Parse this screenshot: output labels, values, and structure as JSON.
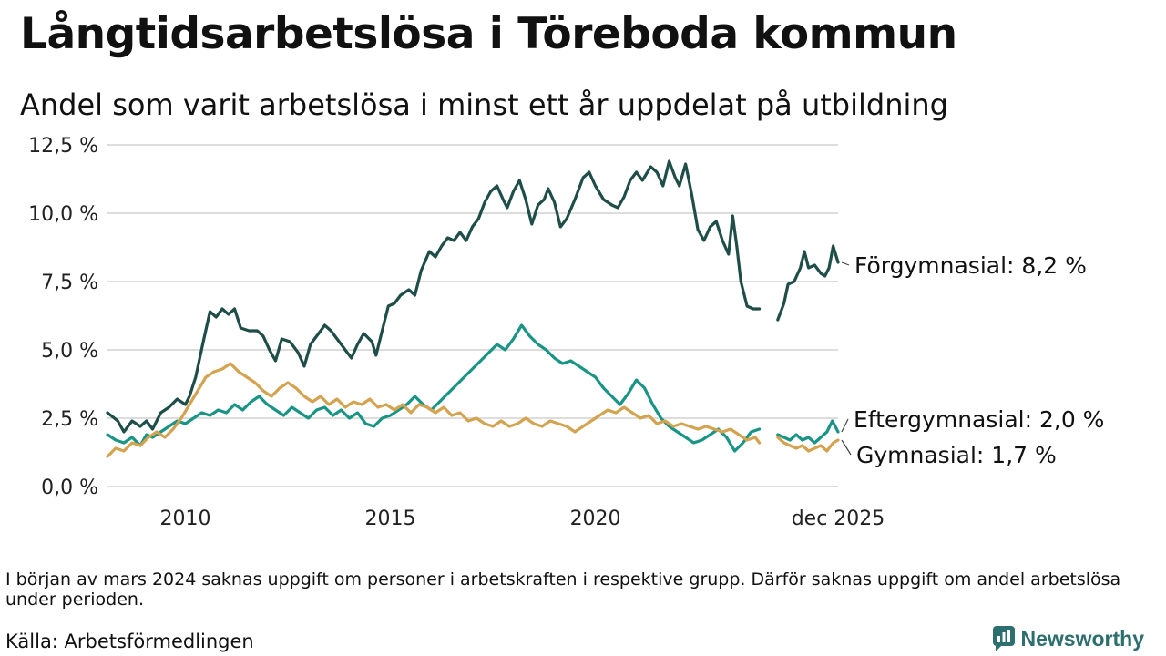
{
  "title": "Långtidsarbetslösa i Töreboda kommun",
  "subtitle": "Andel som varit arbetslösa i minst ett år uppdelat på utbildning",
  "note": "I början av mars 2024 saknas uppgift om personer i arbetskraften i respektive grupp. Därför saknas uppgift om andel arbetslösa under perioden.",
  "source": "Källa: Arbetsförmedlingen",
  "brand": {
    "name": "Newsworthy",
    "icon": "newsworthy-logo-icon"
  },
  "colors": {
    "forgymnasial": "#1f4e49",
    "eftergymnasial": "#1a9485",
    "gymnasial": "#d4a350",
    "grid": "#dddddd"
  },
  "chart_data": {
    "type": "line",
    "xlabel": "",
    "ylabel": "",
    "x_range": [
      2008.1,
      2025.92
    ],
    "ylim": [
      0,
      12.5
    ],
    "y_ticks": [
      0,
      2.5,
      5,
      7.5,
      10,
      12.5
    ],
    "y_tick_labels": [
      "0,0 %",
      "2,5 %",
      "5,0 %",
      "7,5 %",
      "10,0 %",
      "12,5 %"
    ],
    "x_ticks": [
      2010,
      2015,
      2020,
      2025.92
    ],
    "x_tick_labels": [
      "2010",
      "2015",
      "2020",
      "dec 2025"
    ],
    "grid": "horizontal",
    "gap": [
      2024.0,
      2024.4
    ],
    "series": [
      {
        "name": "Förgymnasial",
        "label": "Förgymnasial: 8,2 %",
        "color": "#1f4e49",
        "points": [
          [
            2008.1,
            2.7
          ],
          [
            2008.35,
            2.4
          ],
          [
            2008.5,
            2.0
          ],
          [
            2008.7,
            2.4
          ],
          [
            2008.9,
            2.2
          ],
          [
            2009.05,
            2.4
          ],
          [
            2009.2,
            2.1
          ],
          [
            2009.4,
            2.7
          ],
          [
            2009.6,
            2.9
          ],
          [
            2009.8,
            3.2
          ],
          [
            2010.0,
            3.0
          ],
          [
            2010.1,
            3.3
          ],
          [
            2010.25,
            4.0
          ],
          [
            2010.45,
            5.4
          ],
          [
            2010.6,
            6.4
          ],
          [
            2010.75,
            6.2
          ],
          [
            2010.9,
            6.5
          ],
          [
            2011.05,
            6.3
          ],
          [
            2011.2,
            6.5
          ],
          [
            2011.35,
            5.8
          ],
          [
            2011.55,
            5.7
          ],
          [
            2011.75,
            5.7
          ],
          [
            2011.9,
            5.5
          ],
          [
            2012.05,
            5.0
          ],
          [
            2012.2,
            4.6
          ],
          [
            2012.35,
            5.4
          ],
          [
            2012.55,
            5.3
          ],
          [
            2012.75,
            4.9
          ],
          [
            2012.9,
            4.4
          ],
          [
            2013.05,
            5.2
          ],
          [
            2013.25,
            5.6
          ],
          [
            2013.4,
            5.9
          ],
          [
            2013.55,
            5.7
          ],
          [
            2013.75,
            5.3
          ],
          [
            2013.9,
            5.0
          ],
          [
            2014.05,
            4.7
          ],
          [
            2014.2,
            5.2
          ],
          [
            2014.35,
            5.6
          ],
          [
            2014.55,
            5.3
          ],
          [
            2014.65,
            4.8
          ],
          [
            2014.8,
            5.7
          ],
          [
            2014.95,
            6.6
          ],
          [
            2015.1,
            6.7
          ],
          [
            2015.25,
            7.0
          ],
          [
            2015.45,
            7.2
          ],
          [
            2015.6,
            7.0
          ],
          [
            2015.75,
            7.9
          ],
          [
            2015.95,
            8.6
          ],
          [
            2016.1,
            8.4
          ],
          [
            2016.25,
            8.8
          ],
          [
            2016.4,
            9.1
          ],
          [
            2016.55,
            9.0
          ],
          [
            2016.7,
            9.3
          ],
          [
            2016.85,
            9.0
          ],
          [
            2017.0,
            9.5
          ],
          [
            2017.15,
            9.8
          ],
          [
            2017.3,
            10.4
          ],
          [
            2017.45,
            10.8
          ],
          [
            2017.6,
            11.0
          ],
          [
            2017.75,
            10.5
          ],
          [
            2017.85,
            10.2
          ],
          [
            2018.0,
            10.8
          ],
          [
            2018.15,
            11.2
          ],
          [
            2018.3,
            10.5
          ],
          [
            2018.45,
            9.6
          ],
          [
            2018.6,
            10.3
          ],
          [
            2018.75,
            10.5
          ],
          [
            2018.85,
            10.9
          ],
          [
            2019.0,
            10.4
          ],
          [
            2019.15,
            9.5
          ],
          [
            2019.3,
            9.8
          ],
          [
            2019.5,
            10.5
          ],
          [
            2019.7,
            11.3
          ],
          [
            2019.85,
            11.5
          ],
          [
            2020.0,
            11.0
          ],
          [
            2020.2,
            10.5
          ],
          [
            2020.4,
            10.3
          ],
          [
            2020.55,
            10.2
          ],
          [
            2020.7,
            10.6
          ],
          [
            2020.85,
            11.2
          ],
          [
            2021.0,
            11.5
          ],
          [
            2021.15,
            11.2
          ],
          [
            2021.35,
            11.7
          ],
          [
            2021.5,
            11.5
          ],
          [
            2021.65,
            11.0
          ],
          [
            2021.8,
            11.9
          ],
          [
            2021.95,
            11.3
          ],
          [
            2022.05,
            11.0
          ],
          [
            2022.2,
            11.8
          ],
          [
            2022.35,
            10.7
          ],
          [
            2022.5,
            9.4
          ],
          [
            2022.65,
            9.0
          ],
          [
            2022.8,
            9.5
          ],
          [
            2022.95,
            9.7
          ],
          [
            2023.1,
            9.0
          ],
          [
            2023.25,
            8.5
          ],
          [
            2023.35,
            9.9
          ],
          [
            2023.45,
            8.8
          ],
          [
            2023.55,
            7.5
          ],
          [
            2023.7,
            6.6
          ],
          [
            2023.85,
            6.5
          ],
          [
            2024.0,
            6.5
          ]
        ]
      },
      {
        "name": "Eftergymnasial",
        "label": "Eftergymnasial: 2,0 %",
        "color": "#1a9485",
        "points": [
          [
            2008.1,
            1.9
          ],
          [
            2008.3,
            1.7
          ],
          [
            2008.5,
            1.6
          ],
          [
            2008.7,
            1.8
          ],
          [
            2008.9,
            1.5
          ],
          [
            2009.05,
            1.9
          ],
          [
            2009.2,
            1.8
          ],
          [
            2009.4,
            2.0
          ],
          [
            2009.6,
            2.2
          ],
          [
            2009.8,
            2.4
          ],
          [
            2010.0,
            2.3
          ],
          [
            2010.2,
            2.5
          ],
          [
            2010.4,
            2.7
          ],
          [
            2010.6,
            2.6
          ],
          [
            2010.8,
            2.8
          ],
          [
            2011.0,
            2.7
          ],
          [
            2011.2,
            3.0
          ],
          [
            2011.4,
            2.8
          ],
          [
            2011.6,
            3.1
          ],
          [
            2011.8,
            3.3
          ],
          [
            2012.0,
            3.0
          ],
          [
            2012.2,
            2.8
          ],
          [
            2012.4,
            2.6
          ],
          [
            2012.6,
            2.9
          ],
          [
            2012.8,
            2.7
          ],
          [
            2013.0,
            2.5
          ],
          [
            2013.2,
            2.8
          ],
          [
            2013.4,
            2.9
          ],
          [
            2013.6,
            2.6
          ],
          [
            2013.8,
            2.8
          ],
          [
            2014.0,
            2.5
          ],
          [
            2014.2,
            2.7
          ],
          [
            2014.4,
            2.3
          ],
          [
            2014.6,
            2.2
          ],
          [
            2014.8,
            2.5
          ],
          [
            2015.0,
            2.6
          ],
          [
            2015.2,
            2.8
          ],
          [
            2015.4,
            3.0
          ],
          [
            2015.6,
            3.3
          ],
          [
            2015.8,
            3.0
          ],
          [
            2016.0,
            2.8
          ],
          [
            2016.2,
            3.1
          ],
          [
            2016.4,
            3.4
          ],
          [
            2016.6,
            3.7
          ],
          [
            2016.8,
            4.0
          ],
          [
            2017.0,
            4.3
          ],
          [
            2017.2,
            4.6
          ],
          [
            2017.4,
            4.9
          ],
          [
            2017.6,
            5.2
          ],
          [
            2017.8,
            5.0
          ],
          [
            2018.0,
            5.4
          ],
          [
            2018.2,
            5.9
          ],
          [
            2018.4,
            5.5
          ],
          [
            2018.6,
            5.2
          ],
          [
            2018.8,
            5.0
          ],
          [
            2019.0,
            4.7
          ],
          [
            2019.2,
            4.5
          ],
          [
            2019.4,
            4.6
          ],
          [
            2019.6,
            4.4
          ],
          [
            2019.8,
            4.2
          ],
          [
            2020.0,
            4.0
          ],
          [
            2020.2,
            3.6
          ],
          [
            2020.4,
            3.3
          ],
          [
            2020.6,
            3.0
          ],
          [
            2020.8,
            3.4
          ],
          [
            2021.0,
            3.9
          ],
          [
            2021.2,
            3.6
          ],
          [
            2021.4,
            3.0
          ],
          [
            2021.6,
            2.5
          ],
          [
            2021.8,
            2.2
          ],
          [
            2022.0,
            2.0
          ],
          [
            2022.2,
            1.8
          ],
          [
            2022.4,
            1.6
          ],
          [
            2022.6,
            1.7
          ],
          [
            2022.8,
            1.9
          ],
          [
            2023.0,
            2.1
          ],
          [
            2023.2,
            1.8
          ],
          [
            2023.4,
            1.3
          ],
          [
            2023.6,
            1.6
          ],
          [
            2023.8,
            2.0
          ],
          [
            2024.0,
            2.1
          ]
        ]
      },
      {
        "name": "Gymnasial",
        "label": "Gymnasial: 1,7 %",
        "color": "#d4a350",
        "points": [
          [
            2008.1,
            1.1
          ],
          [
            2008.3,
            1.4
          ],
          [
            2008.5,
            1.3
          ],
          [
            2008.7,
            1.6
          ],
          [
            2008.9,
            1.5
          ],
          [
            2009.1,
            1.8
          ],
          [
            2009.3,
            2.0
          ],
          [
            2009.5,
            1.8
          ],
          [
            2009.7,
            2.1
          ],
          [
            2009.9,
            2.5
          ],
          [
            2010.1,
            3.0
          ],
          [
            2010.3,
            3.5
          ],
          [
            2010.5,
            4.0
          ],
          [
            2010.7,
            4.2
          ],
          [
            2010.9,
            4.3
          ],
          [
            2011.1,
            4.5
          ],
          [
            2011.3,
            4.2
          ],
          [
            2011.5,
            4.0
          ],
          [
            2011.7,
            3.8
          ],
          [
            2011.9,
            3.5
          ],
          [
            2012.1,
            3.3
          ],
          [
            2012.3,
            3.6
          ],
          [
            2012.5,
            3.8
          ],
          [
            2012.7,
            3.6
          ],
          [
            2012.9,
            3.3
          ],
          [
            2013.1,
            3.1
          ],
          [
            2013.3,
            3.3
          ],
          [
            2013.5,
            3.0
          ],
          [
            2013.7,
            3.2
          ],
          [
            2013.9,
            2.9
          ],
          [
            2014.1,
            3.1
          ],
          [
            2014.3,
            3.0
          ],
          [
            2014.5,
            3.2
          ],
          [
            2014.7,
            2.9
          ],
          [
            2014.9,
            3.0
          ],
          [
            2015.1,
            2.8
          ],
          [
            2015.3,
            3.0
          ],
          [
            2015.5,
            2.7
          ],
          [
            2015.7,
            3.0
          ],
          [
            2015.9,
            2.9
          ],
          [
            2016.1,
            2.7
          ],
          [
            2016.3,
            2.9
          ],
          [
            2016.5,
            2.6
          ],
          [
            2016.7,
            2.7
          ],
          [
            2016.9,
            2.4
          ],
          [
            2017.1,
            2.5
          ],
          [
            2017.3,
            2.3
          ],
          [
            2017.5,
            2.2
          ],
          [
            2017.7,
            2.4
          ],
          [
            2017.9,
            2.2
          ],
          [
            2018.1,
            2.3
          ],
          [
            2018.3,
            2.5
          ],
          [
            2018.5,
            2.3
          ],
          [
            2018.7,
            2.2
          ],
          [
            2018.9,
            2.4
          ],
          [
            2019.1,
            2.3
          ],
          [
            2019.3,
            2.2
          ],
          [
            2019.5,
            2.0
          ],
          [
            2019.7,
            2.2
          ],
          [
            2019.9,
            2.4
          ],
          [
            2020.1,
            2.6
          ],
          [
            2020.3,
            2.8
          ],
          [
            2020.5,
            2.7
          ],
          [
            2020.7,
            2.9
          ],
          [
            2020.9,
            2.7
          ],
          [
            2021.1,
            2.5
          ],
          [
            2021.3,
            2.6
          ],
          [
            2021.5,
            2.3
          ],
          [
            2021.7,
            2.4
          ],
          [
            2021.9,
            2.2
          ],
          [
            2022.1,
            2.3
          ],
          [
            2022.3,
            2.2
          ],
          [
            2022.5,
            2.1
          ],
          [
            2022.7,
            2.2
          ],
          [
            2022.9,
            2.1
          ],
          [
            2023.1,
            2.0
          ],
          [
            2023.3,
            2.1
          ],
          [
            2023.5,
            1.9
          ],
          [
            2023.7,
            1.7
          ],
          [
            2023.9,
            1.8
          ],
          [
            2024.0,
            1.6
          ]
        ]
      }
    ]
  }
}
